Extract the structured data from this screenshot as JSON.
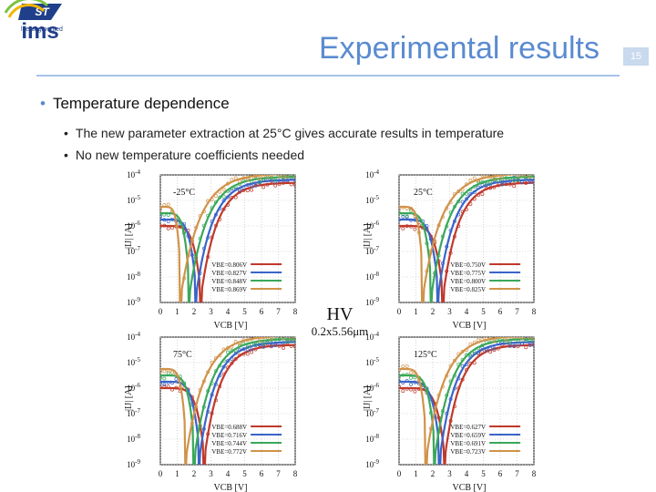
{
  "header": {
    "title": "Experimental results",
    "page_number": "15"
  },
  "bullet": {
    "text": "Temperature dependence"
  },
  "subbullets": [
    "The new parameter extraction at 25°C gives accurate results in temperature",
    "No new temperature coefficients needed"
  ],
  "center_label": {
    "device": "HV",
    "size": "0.2x5.56μm"
  },
  "logos": {
    "st_text": "life.augmented",
    "ims_text": "ims"
  },
  "chart_data": [
    {
      "type": "line",
      "temp_label": "-25°C",
      "xlabel": "VCB [V]",
      "ylabel": "|IJ| [A]",
      "x_ticks": [
        "0",
        "1",
        "2",
        "3",
        "4",
        "5",
        "6",
        "7",
        "8"
      ],
      "y_ticks": [
        "10-4",
        "10-5",
        "10-6",
        "10-7",
        "10-8",
        "10-9"
      ],
      "xlim": [
        0,
        8
      ],
      "ylim_log10": [
        -9,
        -4
      ],
      "series": [
        {
          "name": "VBE=0.806V",
          "color": "#c0392b",
          "dip_x": 2.4
        },
        {
          "name": "VBE=0.827V",
          "color": "#3a64c8",
          "dip_x": 2.1
        },
        {
          "name": "VBE=0.848V",
          "color": "#3aa85a",
          "dip_x": 1.7
        },
        {
          "name": "VBE=0.869V",
          "color": "#d0934a",
          "dip_x": 1.2
        }
      ]
    },
    {
      "type": "line",
      "temp_label": "25°C",
      "xlabel": "VCB [V]",
      "ylabel": "|IJ| [A]",
      "x_ticks": [
        "0",
        "1",
        "2",
        "3",
        "4",
        "5",
        "6",
        "7",
        "8"
      ],
      "y_ticks": [
        "10-4",
        "10-5",
        "10-6",
        "10-7",
        "10-8",
        "10-9"
      ],
      "xlim": [
        0,
        8
      ],
      "ylim_log10": [
        -9,
        -4
      ],
      "series": [
        {
          "name": "VBE=0.750V",
          "color": "#c0392b",
          "dip_x": 2.6
        },
        {
          "name": "VBE=0.775V",
          "color": "#3a64c8",
          "dip_x": 2.3
        },
        {
          "name": "VBE=0.800V",
          "color": "#3aa85a",
          "dip_x": 1.9
        },
        {
          "name": "VBE=0.825V",
          "color": "#d0934a",
          "dip_x": 1.4
        }
      ]
    },
    {
      "type": "line",
      "temp_label": "75°C",
      "xlabel": "VCB [V]",
      "ylabel": "|IJ| [A]",
      "x_ticks": [
        "0",
        "1",
        "2",
        "3",
        "4",
        "5",
        "6",
        "7",
        "8"
      ],
      "y_ticks": [
        "10-4",
        "10-5",
        "10-6",
        "10-7",
        "10-8",
        "10-9"
      ],
      "xlim": [
        0,
        8
      ],
      "ylim_log10": [
        -9,
        -4
      ],
      "series": [
        {
          "name": "VBE=0.688V",
          "color": "#c0392b",
          "dip_x": 2.6
        },
        {
          "name": "VBE=0.716V",
          "color": "#3a64c8",
          "dip_x": 2.3
        },
        {
          "name": "VBE=0.744V",
          "color": "#3aa85a",
          "dip_x": 2.0
        },
        {
          "name": "VBE=0.772V",
          "color": "#d0934a",
          "dip_x": 1.5
        }
      ]
    },
    {
      "type": "line",
      "temp_label": "125°C",
      "xlabel": "VCB [V]",
      "ylabel": "|IJ| [A]",
      "x_ticks": [
        "0",
        "1",
        "2",
        "3",
        "4",
        "5",
        "6",
        "7",
        "8"
      ],
      "y_ticks": [
        "10-4",
        "10-5",
        "10-6",
        "10-7",
        "10-8",
        "10-9"
      ],
      "xlim": [
        0,
        8
      ],
      "ylim_log10": [
        -9,
        -4
      ],
      "series": [
        {
          "name": "VBE=0.627V",
          "color": "#c0392b",
          "dip_x": 2.7
        },
        {
          "name": "VBE=0.659V",
          "color": "#3a64c8",
          "dip_x": 2.4
        },
        {
          "name": "VBE=0.691V",
          "color": "#3aa85a",
          "dip_x": 2.1
        },
        {
          "name": "VBE=0.723V",
          "color": "#d0934a",
          "dip_x": 1.6
        }
      ]
    }
  ]
}
